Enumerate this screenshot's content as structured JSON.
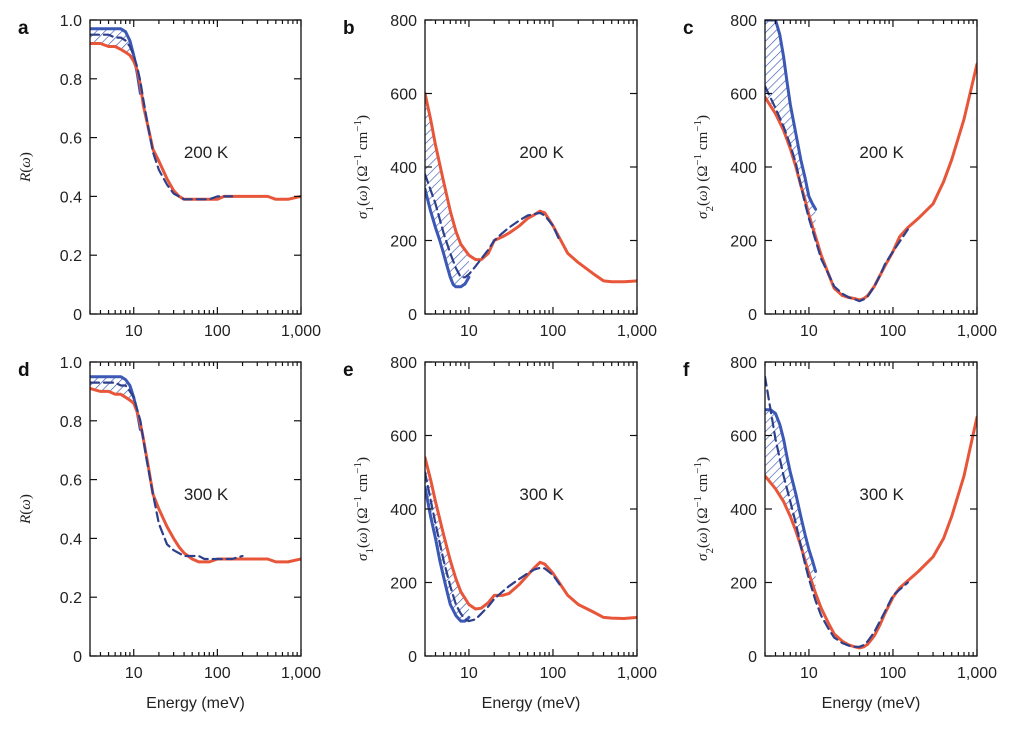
{
  "colors": {
    "measured": "#e8563a",
    "fit": "#3b58b4",
    "fit_dashed": "#2e3f8c",
    "frame": "#111111"
  },
  "chart_data": [
    {
      "panel": "a",
      "type": "line",
      "temperature_label": "200 K",
      "ylabel": "R(ω)",
      "xlabel": "",
      "xscale": "log",
      "xlim": [
        3,
        1000
      ],
      "ylim": [
        0,
        1
      ],
      "yticks": [
        "0",
        "0.2",
        "0.4",
        "0.6",
        "0.8",
        "1.0"
      ],
      "xticks": [
        "10",
        "100",
        "1,000"
      ],
      "series": [
        {
          "style": "solid-red",
          "x": [
            3,
            4,
            5,
            6,
            7,
            8,
            9,
            10,
            11,
            12,
            13,
            15,
            17,
            20,
            25,
            30,
            35,
            40,
            50,
            60,
            70,
            80,
            100,
            120,
            150,
            200,
            300,
            400,
            500,
            700,
            1000
          ],
          "y": [
            0.92,
            0.92,
            0.91,
            0.91,
            0.9,
            0.89,
            0.88,
            0.86,
            0.83,
            0.78,
            0.71,
            0.63,
            0.56,
            0.52,
            0.46,
            0.42,
            0.4,
            0.39,
            0.39,
            0.39,
            0.39,
            0.39,
            0.39,
            0.4,
            0.4,
            0.4,
            0.4,
            0.4,
            0.39,
            0.39,
            0.4
          ]
        },
        {
          "style": "solid-blue",
          "x": [
            3,
            4,
            5,
            6,
            7,
            8,
            9,
            10,
            11,
            12
          ],
          "y": [
            0.97,
            0.97,
            0.97,
            0.97,
            0.97,
            0.96,
            0.93,
            0.88,
            0.82,
            0.75
          ]
        },
        {
          "style": "dashed-blue",
          "x": [
            3,
            4,
            5,
            6,
            7,
            8,
            9,
            10,
            11,
            12,
            13,
            15,
            17,
            20,
            25,
            30,
            40,
            50,
            60,
            70,
            80,
            100,
            150
          ],
          "y": [
            0.95,
            0.95,
            0.95,
            0.94,
            0.94,
            0.93,
            0.91,
            0.88,
            0.84,
            0.79,
            0.73,
            0.63,
            0.55,
            0.49,
            0.44,
            0.41,
            0.39,
            0.39,
            0.39,
            0.39,
            0.39,
            0.4,
            0.4
          ]
        }
      ],
      "hatched_between": [
        "solid-red",
        "solid-blue"
      ]
    },
    {
      "panel": "b",
      "type": "line",
      "temperature_label": "200 K",
      "ylabel": "σ1(ω) (Ω−1 cm−1)",
      "xlabel": "",
      "xscale": "log",
      "xlim": [
        3,
        1000
      ],
      "ylim": [
        0,
        800
      ],
      "yticks": [
        "0",
        "200",
        "400",
        "600",
        "800"
      ],
      "xticks": [
        "10",
        "100",
        "1,000"
      ],
      "series": [
        {
          "style": "solid-red",
          "x": [
            3,
            3.5,
            4,
            5,
            6,
            7,
            8,
            10,
            12,
            14,
            17,
            20,
            25,
            30,
            40,
            50,
            60,
            70,
            80,
            100,
            150,
            200,
            300,
            400,
            500,
            700,
            1000
          ],
          "y": [
            600,
            530,
            460,
            360,
            280,
            225,
            190,
            160,
            148,
            148,
            165,
            200,
            210,
            220,
            240,
            260,
            270,
            280,
            275,
            240,
            165,
            140,
            110,
            90,
            88,
            88,
            90
          ]
        },
        {
          "style": "solid-blue",
          "x": [
            3,
            3.5,
            4,
            4.5,
            5,
            5.5,
            6,
            6.5,
            7,
            8,
            9,
            10
          ],
          "y": [
            340,
            280,
            235,
            200,
            165,
            130,
            100,
            80,
            74,
            74,
            82,
            100
          ]
        },
        {
          "style": "dashed-blue",
          "x": [
            3,
            4,
            5,
            6,
            7,
            8,
            9,
            10,
            12,
            14,
            17,
            20,
            25,
            30,
            40,
            50,
            60,
            70,
            80,
            100,
            120
          ],
          "y": [
            380,
            300,
            220,
            165,
            125,
            100,
            100,
            108,
            130,
            150,
            175,
            200,
            220,
            235,
            255,
            268,
            272,
            275,
            268,
            240,
            200
          ]
        }
      ],
      "hatched_between": [
        "solid-red",
        "solid-blue"
      ]
    },
    {
      "panel": "c",
      "type": "line",
      "temperature_label": "200 K",
      "ylabel": "σ2(ω) (Ω−1 cm−1)",
      "xlabel": "",
      "xscale": "log",
      "xlim": [
        3,
        1000
      ],
      "ylim": [
        0,
        800
      ],
      "yticks": [
        "0",
        "200",
        "400",
        "600",
        "800"
      ],
      "xticks": [
        "10",
        "100",
        "1,000"
      ],
      "series": [
        {
          "style": "solid-red",
          "x": [
            3,
            4,
            5,
            6,
            7,
            8,
            9,
            10,
            12,
            14,
            17,
            20,
            25,
            30,
            35,
            40,
            45,
            50,
            60,
            70,
            80,
            100,
            120,
            150,
            200,
            300,
            400,
            500,
            700,
            1000
          ],
          "y": [
            590,
            545,
            500,
            450,
            400,
            350,
            310,
            270,
            210,
            160,
            110,
            70,
            50,
            45,
            42,
            38,
            42,
            50,
            75,
            105,
            130,
            170,
            210,
            235,
            260,
            300,
            360,
            420,
            530,
            680
          ]
        },
        {
          "style": "solid-blue",
          "x": [
            3,
            3.5,
            4,
            4.5,
            5,
            5.5,
            6,
            7,
            8,
            9,
            10,
            11,
            12
          ],
          "y": [
            800,
            800,
            800,
            760,
            700,
            630,
            570,
            490,
            420,
            370,
            320,
            300,
            285
          ]
        },
        {
          "style": "dashed-blue",
          "x": [
            3,
            4,
            5,
            6,
            7,
            8,
            9,
            10,
            12,
            14,
            17,
            20,
            25,
            30,
            35,
            40,
            45,
            50,
            60,
            70,
            80,
            100,
            150
          ],
          "y": [
            620,
            560,
            510,
            460,
            410,
            350,
            300,
            260,
            200,
            150,
            110,
            75,
            55,
            45,
            40,
            35,
            40,
            48,
            75,
            105,
            135,
            170,
            230
          ]
        }
      ],
      "hatched_between": [
        "solid-red",
        "solid-blue"
      ]
    },
    {
      "panel": "d",
      "type": "line",
      "temperature_label": "300 K",
      "ylabel": "R(ω)",
      "xlabel": "Energy (meV)",
      "xscale": "log",
      "xlim": [
        3,
        1000
      ],
      "ylim": [
        0,
        1
      ],
      "yticks": [
        "0",
        "0.2",
        "0.4",
        "0.6",
        "0.8",
        "1.0"
      ],
      "xticks": [
        "10",
        "100",
        "1,000"
      ],
      "series": [
        {
          "style": "solid-red",
          "x": [
            3,
            4,
            5,
            6,
            7,
            8,
            9,
            10,
            11,
            12,
            13,
            15,
            17,
            20,
            25,
            30,
            35,
            40,
            50,
            60,
            70,
            80,
            100,
            120,
            150,
            200,
            300,
            400,
            500,
            700,
            1000
          ],
          "y": [
            0.91,
            0.9,
            0.9,
            0.89,
            0.89,
            0.88,
            0.87,
            0.86,
            0.83,
            0.79,
            0.74,
            0.64,
            0.55,
            0.5,
            0.44,
            0.4,
            0.37,
            0.35,
            0.33,
            0.32,
            0.32,
            0.32,
            0.33,
            0.33,
            0.33,
            0.33,
            0.33,
            0.33,
            0.32,
            0.32,
            0.33
          ]
        },
        {
          "style": "solid-blue",
          "x": [
            3,
            4,
            5,
            6,
            7,
            8,
            9,
            10,
            11,
            12
          ],
          "y": [
            0.95,
            0.95,
            0.95,
            0.95,
            0.95,
            0.94,
            0.92,
            0.88,
            0.83,
            0.77
          ]
        },
        {
          "style": "dashed-blue",
          "x": [
            3,
            4,
            5,
            6,
            7,
            8,
            9,
            10,
            12,
            14,
            17,
            20,
            25,
            30,
            40,
            50,
            60,
            70,
            80,
            100,
            150,
            200
          ],
          "y": [
            0.93,
            0.93,
            0.93,
            0.93,
            0.92,
            0.92,
            0.9,
            0.88,
            0.8,
            0.68,
            0.55,
            0.45,
            0.38,
            0.36,
            0.34,
            0.34,
            0.34,
            0.33,
            0.33,
            0.33,
            0.33,
            0.34
          ]
        }
      ],
      "hatched_between": [
        "solid-red",
        "solid-blue"
      ]
    },
    {
      "panel": "e",
      "type": "line",
      "temperature_label": "300 K",
      "ylabel": "σ1(ω) (Ω−1 cm−1)",
      "xlabel": "Energy (meV)",
      "xscale": "log",
      "xlim": [
        3,
        1000
      ],
      "ylim": [
        0,
        800
      ],
      "yticks": [
        "0",
        "200",
        "400",
        "600",
        "800"
      ],
      "xticks": [
        "10",
        "100",
        "1,000"
      ],
      "series": [
        {
          "style": "solid-red",
          "x": [
            3,
            3.5,
            4,
            5,
            6,
            7,
            8,
            10,
            12,
            14,
            17,
            20,
            25,
            30,
            40,
            50,
            60,
            70,
            80,
            100,
            150,
            200,
            300,
            400,
            500,
            700,
            1000
          ],
          "y": [
            540,
            480,
            420,
            330,
            260,
            210,
            175,
            140,
            128,
            130,
            145,
            165,
            165,
            170,
            195,
            220,
            240,
            255,
            250,
            225,
            165,
            140,
            120,
            105,
            103,
            102,
            105
          ]
        },
        {
          "style": "solid-blue",
          "x": [
            3,
            3.5,
            4,
            4.5,
            5,
            5.5,
            6,
            7,
            8,
            9,
            10
          ],
          "y": [
            460,
            380,
            320,
            260,
            215,
            175,
            140,
            110,
            95,
            95,
            105
          ]
        },
        {
          "style": "dashed-blue",
          "x": [
            3,
            4,
            5,
            6,
            7,
            8,
            9,
            10,
            12,
            14,
            17,
            20,
            25,
            30,
            40,
            50,
            60,
            70,
            80,
            100,
            120
          ],
          "y": [
            500,
            360,
            260,
            190,
            140,
            115,
            100,
            95,
            100,
            115,
            135,
            155,
            175,
            190,
            210,
            225,
            235,
            240,
            238,
            220,
            195
          ]
        }
      ],
      "hatched_between": [
        "solid-red",
        "solid-blue"
      ]
    },
    {
      "panel": "f",
      "type": "line",
      "temperature_label": "300 K",
      "ylabel": "σ2(ω) (Ω−1 cm−1)",
      "xlabel": "Energy (meV)",
      "xscale": "log",
      "xlim": [
        3,
        1000
      ],
      "ylim": [
        0,
        800
      ],
      "yticks": [
        "0",
        "200",
        "400",
        "600",
        "800"
      ],
      "xticks": [
        "10",
        "100",
        "1,000"
      ],
      "series": [
        {
          "style": "solid-red",
          "x": [
            3,
            4,
            5,
            6,
            7,
            8,
            9,
            10,
            12,
            14,
            17,
            20,
            25,
            30,
            35,
            40,
            45,
            50,
            60,
            70,
            80,
            100,
            120,
            150,
            200,
            300,
            400,
            500,
            700,
            1000
          ],
          "y": [
            490,
            455,
            420,
            380,
            340,
            300,
            260,
            225,
            170,
            130,
            90,
            60,
            40,
            30,
            25,
            22,
            25,
            32,
            55,
            85,
            115,
            160,
            185,
            205,
            230,
            270,
            320,
            380,
            490,
            650
          ]
        },
        {
          "style": "solid-blue",
          "x": [
            3,
            3.5,
            4,
            4.5,
            5,
            5.5,
            6,
            7,
            8,
            9,
            10,
            11,
            12
          ],
          "y": [
            670,
            670,
            660,
            630,
            590,
            540,
            500,
            440,
            380,
            330,
            290,
            260,
            230
          ]
        },
        {
          "style": "dashed-blue",
          "x": [
            3,
            4,
            5,
            6,
            7,
            8,
            9,
            10,
            12,
            14,
            17,
            20,
            25,
            30,
            35,
            40,
            45,
            50,
            60,
            70,
            80,
            100,
            150
          ],
          "y": [
            760,
            590,
            490,
            420,
            360,
            300,
            250,
            210,
            150,
            110,
            75,
            50,
            35,
            28,
            25,
            25,
            30,
            40,
            65,
            95,
            120,
            165,
            200
          ]
        }
      ],
      "hatched_between": [
        "solid-red",
        "solid-blue"
      ]
    }
  ]
}
